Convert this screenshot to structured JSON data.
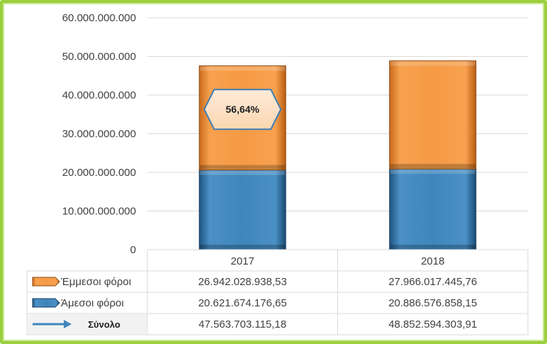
{
  "chart_data": {
    "type": "bar",
    "stacked": true,
    "categories": [
      "2017",
      "2018"
    ],
    "ylim": [
      0,
      60000000000
    ],
    "yticks": [
      "0",
      "10.000.000.000",
      "20.000.000.000",
      "30.000.000.000",
      "40.000.000.000",
      "50.000.000.000",
      "60.000.000.000"
    ],
    "grid": true,
    "series": [
      {
        "name": "Άμεσοι φόροι",
        "values": [
          20621674176.65,
          20886576858.15
        ],
        "labels": [
          "20.621.674.176,65",
          "20.886.576.858,15"
        ],
        "color": "#3f86bd"
      },
      {
        "name": "Έμμεσοι φόροι",
        "values": [
          26942028938.53,
          27966017445.76
        ],
        "labels": [
          "26.942.028.938,53",
          "27.966.017.445,76"
        ],
        "color": "#f59a45"
      }
    ],
    "total": {
      "name": "Σύνολο",
      "values": [
        47563703115.18,
        48852594303.91
      ],
      "labels": [
        "47.563.703.115,18",
        "48.852.594.303,91"
      ],
      "color": "#3f86bd"
    },
    "annotation": {
      "text": "56,64%",
      "category": "2017"
    }
  }
}
